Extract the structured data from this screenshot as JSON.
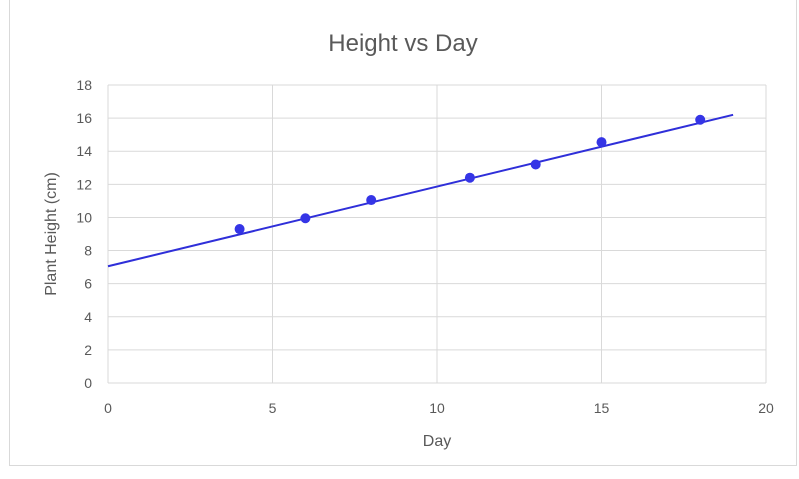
{
  "chart_data": {
    "type": "scatter",
    "title": "Height vs Day",
    "xlabel": "Day",
    "ylabel": "Plant Height (cm)",
    "xlim": [
      0,
      20
    ],
    "ylim": [
      0,
      18
    ],
    "x_ticks": [
      "0",
      "5",
      "10",
      "15",
      "20"
    ],
    "y_ticks": [
      "0",
      "2",
      "4",
      "6",
      "8",
      "10",
      "12",
      "14",
      "16",
      "18"
    ],
    "grid": true,
    "legend": "none",
    "series": [
      {
        "x": [
          4,
          6,
          8,
          11,
          13,
          15,
          18
        ],
        "y": [
          9.3,
          9.95,
          11.05,
          12.4,
          13.2,
          14.55,
          15.9
        ],
        "color": "#3535e6"
      }
    ],
    "trendline": {
      "type": "linear",
      "x": [
        0,
        19
      ],
      "y": [
        7.05,
        16.2
      ],
      "color": "#2f2fd9"
    }
  }
}
